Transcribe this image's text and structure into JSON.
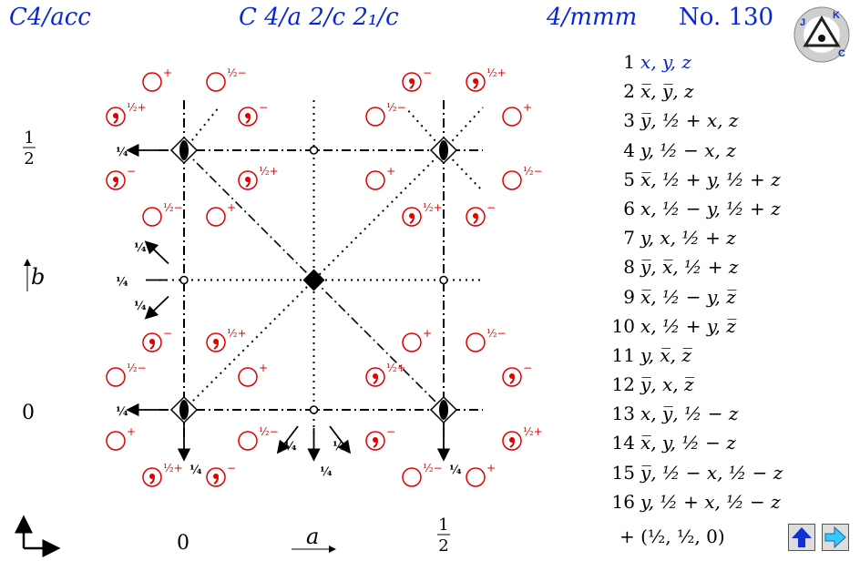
{
  "header": {
    "short_symbol": "C4/acc",
    "full_symbol": "C 4/a 2/c 2₁/c",
    "point_group": "4/mmm",
    "number_label": "No. 130"
  },
  "logo": {
    "text": "JKC"
  },
  "axes": {
    "b_label": "b",
    "a_label": "a",
    "y_half": "1/2",
    "y_zero": "0",
    "x_zero": "0",
    "x_half": "1/2"
  },
  "operations": [
    {
      "n": "1",
      "t": "x, y, z"
    },
    {
      "n": "2",
      "t": "x̅, y̅, z"
    },
    {
      "n": "3",
      "t": "y̅, ½ + x, z"
    },
    {
      "n": "4",
      "t": "y, ½ − x, z"
    },
    {
      "n": "5",
      "t": "x̅, ½ + y, ½ + z"
    },
    {
      "n": "6",
      "t": "x, ½ − y, ½ + z"
    },
    {
      "n": "7",
      "t": "y, x, ½ + z"
    },
    {
      "n": "8",
      "t": "y̅, x̅, ½ + z"
    },
    {
      "n": "9",
      "t": "x̅, ½ − y, z̅"
    },
    {
      "n": "10",
      "t": "x, ½ + y, z̅"
    },
    {
      "n": "11",
      "t": "y, x̅, z̅"
    },
    {
      "n": "12",
      "t": "y̅, x, z̅"
    },
    {
      "n": "13",
      "t": "x, y̅, ½ − z"
    },
    {
      "n": "14",
      "t": "x̅, y, ½ − z"
    },
    {
      "n": "15",
      "t": "y̅, ½ − x, ½ − z"
    },
    {
      "n": "16",
      "t": "y, ½ + x, ½ − z"
    }
  ],
  "centering": "+ (½, ½, 0)",
  "symbols": {
    "plus": "+",
    "minus": "−",
    "half_plus": "½+",
    "half_minus": "½−",
    "quarter": "¼"
  },
  "colors": {
    "title": "#0a28d0",
    "positions": "#e00000",
    "symmetry": "#000000"
  },
  "nav": {
    "up_icon": "up-arrow-icon",
    "right_icon": "right-arrow-icon"
  }
}
